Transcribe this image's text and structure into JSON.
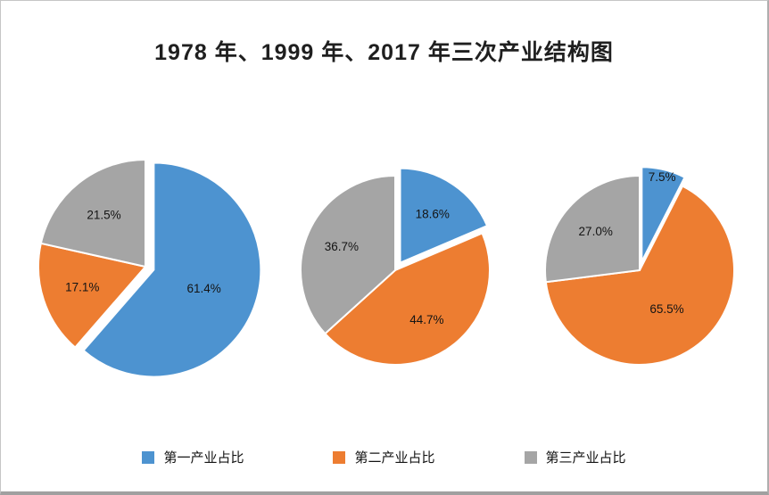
{
  "title": "1978 年、1999 年、2017 年三次产业结构图",
  "legend": [
    {
      "label": "第一产业占比",
      "color": "#4d93d0"
    },
    {
      "label": "第二产业占比",
      "color": "#ed7d31"
    },
    {
      "label": "第三产业占比",
      "color": "#a5a5a5"
    }
  ],
  "chart_data": {
    "type": "pie",
    "title": "1978 年、1999 年、2017 年三次产业结构图",
    "series_labels": [
      "第一产业占比",
      "第二产业占比",
      "第三产业占比"
    ],
    "colors": [
      "#4d93d0",
      "#ed7d31",
      "#a5a5a5"
    ],
    "pies": [
      {
        "name": "1978",
        "values": [
          61.4,
          17.1,
          21.5
        ]
      },
      {
        "name": "1999",
        "values": [
          18.6,
          44.7,
          36.7
        ]
      },
      {
        "name": "2017",
        "values": [
          7.5,
          65.5,
          27.0
        ]
      }
    ],
    "label_format": "one_decimal_percent",
    "exploded_slice_index": 0,
    "slice_border_color": "#ffffff",
    "legend_position": "bottom",
    "start_angle_deg": 0,
    "direction": "clockwise"
  }
}
